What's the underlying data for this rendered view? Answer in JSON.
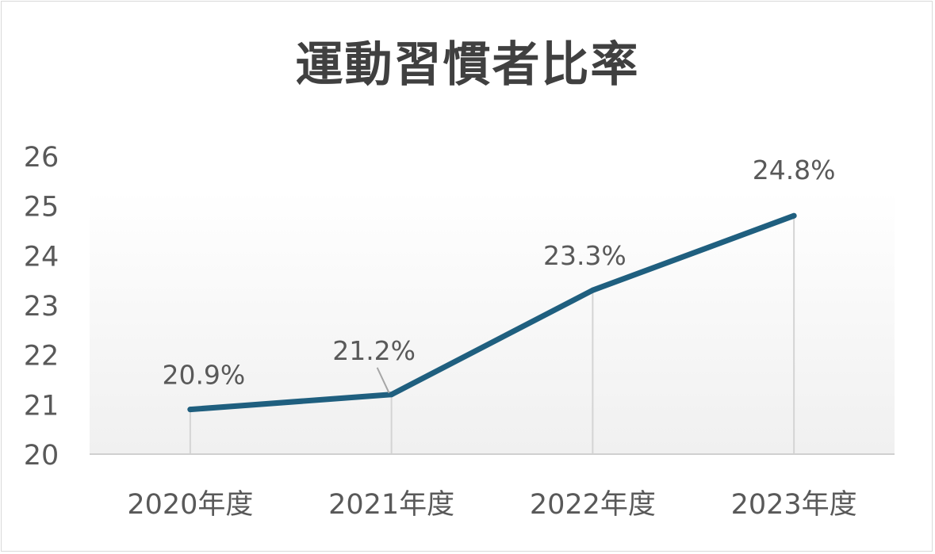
{
  "chart_data": {
    "type": "line",
    "title": "運動習慣者比率",
    "categories": [
      "2020年度",
      "2021年度",
      "2022年度",
      "2023年度"
    ],
    "series": [
      {
        "values": [
          20.9,
          21.2,
          23.3,
          24.8
        ],
        "data_labels": [
          "20.9%",
          "21.2%",
          "23.3%",
          "24.8%"
        ],
        "color": "#1f5f7f"
      }
    ],
    "yticks": [
      "20",
      "21",
      "22",
      "23",
      "24",
      "25",
      "26"
    ],
    "ylim": [
      20,
      26
    ],
    "xlabel": "",
    "ylabel": "",
    "legend": "none",
    "grid": false,
    "drop_lines": true
  }
}
